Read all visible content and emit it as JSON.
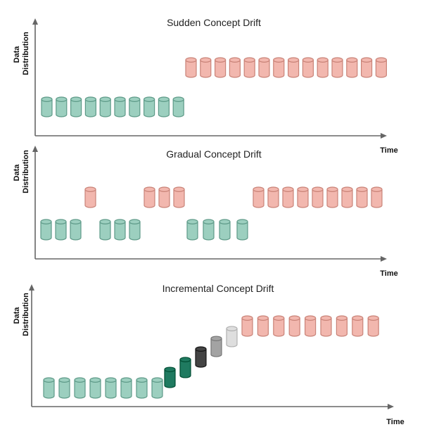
{
  "labels": {
    "y_axis_line1": "Data",
    "y_axis_line2": "Distribution",
    "x_axis": "Time"
  },
  "colors": {
    "old": "#9ccfbf",
    "old_stroke": "#5e9a88",
    "new": "#f2b7ae",
    "new_stroke": "#c98378",
    "dark_green": "#1f7a60",
    "dark_gray": "#444444",
    "mid_gray": "#a3a3a3",
    "light_gray": "#dedede"
  },
  "panels": [
    {
      "title": "Sudden Concept Drift",
      "cylinders": [
        {
          "color": "old",
          "level": 0
        },
        {
          "color": "old",
          "level": 0
        },
        {
          "color": "old",
          "level": 0
        },
        {
          "color": "old",
          "level": 0
        },
        {
          "color": "old",
          "level": 0
        },
        {
          "color": "old",
          "level": 0
        },
        {
          "color": "old",
          "level": 0
        },
        {
          "color": "old",
          "level": 0
        },
        {
          "color": "old",
          "level": 0
        },
        {
          "color": "old",
          "level": 0
        },
        {
          "color": "new",
          "level": 1
        },
        {
          "color": "new",
          "level": 1
        },
        {
          "color": "new",
          "level": 1
        },
        {
          "color": "new",
          "level": 1
        },
        {
          "color": "new",
          "level": 1
        },
        {
          "color": "new",
          "level": 1
        },
        {
          "color": "new",
          "level": 1
        },
        {
          "color": "new",
          "level": 1
        },
        {
          "color": "new",
          "level": 1
        },
        {
          "color": "new",
          "level": 1
        },
        {
          "color": "new",
          "level": 1
        },
        {
          "color": "new",
          "level": 1
        },
        {
          "color": "new",
          "level": 1
        },
        {
          "color": "new",
          "level": 1
        }
      ]
    },
    {
      "title": "Gradual Concept Drift",
      "cylinders": [
        {
          "color": "old",
          "level": 0
        },
        {
          "color": "old",
          "level": 0
        },
        {
          "color": "old",
          "level": 0
        },
        {
          "color": "new",
          "level": 1
        },
        {
          "color": "old",
          "level": 0
        },
        {
          "color": "old",
          "level": 0
        },
        {
          "color": "old",
          "level": 0
        },
        {
          "color": "new",
          "level": 1
        },
        {
          "color": "new",
          "level": 1
        },
        {
          "color": "new",
          "level": 1
        },
        {
          "color": "old",
          "level": 0
        },
        {
          "color": "old",
          "level": 0
        },
        {
          "color": "old",
          "level": 0
        },
        {
          "color": "old",
          "level": 0
        },
        {
          "color": "new",
          "level": 1
        },
        {
          "color": "new",
          "level": 1
        },
        {
          "color": "new",
          "level": 1
        },
        {
          "color": "new",
          "level": 1
        },
        {
          "color": "new",
          "level": 1
        },
        {
          "color": "new",
          "level": 1
        },
        {
          "color": "new",
          "level": 1
        },
        {
          "color": "new",
          "level": 1
        },
        {
          "color": "new",
          "level": 1
        }
      ]
    },
    {
      "title": "Incremental Concept Drift",
      "cylinders": [
        {
          "color": "old",
          "level": 0
        },
        {
          "color": "old",
          "level": 0
        },
        {
          "color": "old",
          "level": 0
        },
        {
          "color": "old",
          "level": 0
        },
        {
          "color": "old",
          "level": 0
        },
        {
          "color": "old",
          "level": 0
        },
        {
          "color": "old",
          "level": 0
        },
        {
          "color": "old",
          "level": 0
        },
        {
          "color": "dark_green",
          "level": 0.17
        },
        {
          "color": "dark_green",
          "level": 0.33
        },
        {
          "color": "dark_gray",
          "level": 0.5
        },
        {
          "color": "mid_gray",
          "level": 0.67
        },
        {
          "color": "light_gray",
          "level": 0.83
        },
        {
          "color": "new",
          "level": 1
        },
        {
          "color": "new",
          "level": 1
        },
        {
          "color": "new",
          "level": 1
        },
        {
          "color": "new",
          "level": 1
        },
        {
          "color": "new",
          "level": 1
        },
        {
          "color": "new",
          "level": 1
        },
        {
          "color": "new",
          "level": 1
        },
        {
          "color": "new",
          "level": 1
        },
        {
          "color": "new",
          "level": 1
        }
      ]
    }
  ]
}
